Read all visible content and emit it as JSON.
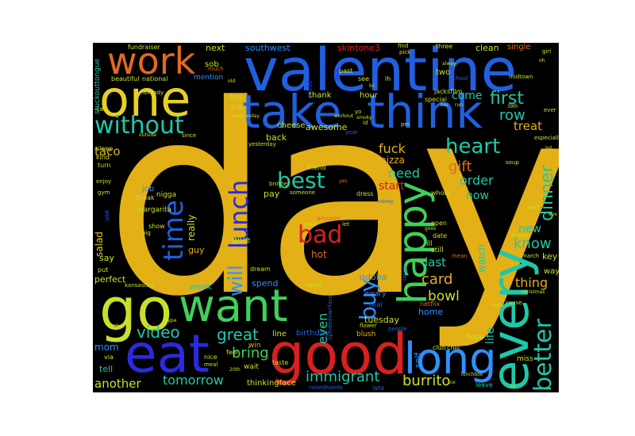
{
  "background": "#000000",
  "palette": {
    "gold": "#e3b016",
    "blue": "#2060e0",
    "teal": "#1fc8a8",
    "red": "#d82020",
    "green": "#3fd05a",
    "lime": "#c9e02a",
    "orange": "#e06a20",
    "darkblue": "#2a2ae0",
    "lightblue": "#3090ff",
    "yellow": "#e8d020"
  },
  "words": {
    "day": "day",
    "valentine": "valentine",
    "take": "take",
    "think": "think",
    "one": "one",
    "work": "work",
    "go": "go",
    "want": "want",
    "eat": "eat",
    "good": "good",
    "long": "long",
    "every": "every",
    "happy": "happy",
    "lunch": "lunch",
    "time": "time",
    "best": "best",
    "bad": "bad",
    "without": "without",
    "heart": "heart",
    "better": "better",
    "first": "first",
    "row": "row",
    "gift": "gift",
    "order": "order",
    "card": "card",
    "buy": "buy",
    "will": "will",
    "video": "video",
    "great": "great",
    "bring": "bring",
    "immigrant": "immigrant",
    "burrito": "burrito",
    "tomorrow": "tomorrow",
    "another": "another",
    "dinner": "dinner",
    "know": "know",
    "thing": "thing",
    "bowl": "bowl",
    "taco": "taco",
    "need": "need",
    "fuck": "fuck",
    "treat": "treat",
    "come": "come",
    "last": "last",
    "now": "now",
    "new": "new",
    "southwest": "southwest",
    "skintone3": "skintone3",
    "clean": "clean",
    "single": "single",
    "next": "next",
    "awesome": "awesome",
    "cheese": "cheese",
    "pizza": "pizza",
    "start": "start",
    "mom": "mom",
    "tell": "tell",
    "perfect": "perfect",
    "week": "week",
    "say": "say",
    "salad": "salad",
    "give": "give",
    "pay": "pay",
    "hot": "hot",
    "guy": "guy",
    "really": "really",
    "job": "job",
    "margarita": "margarita",
    "tuesday": "tuesday",
    "home": "home",
    "even": "even",
    "qdoba": "qdoba",
    "weary": "weary",
    "real": "real",
    "spend": "spend",
    "line": "line",
    "birthday": "birthday",
    "win": "win",
    "wait": "wait",
    "still": "still",
    "ill": "ill",
    "watch": "watch",
    "life": "life",
    "key": "key",
    "way": "way",
    "hope": "hope",
    "miss": "miss",
    "leave": "leave",
    "sob": "sob",
    "mention": "mention",
    "two": "two",
    "thank": "thank",
    "hour": "hour",
    "back": "back",
    "thinkingface": "thinkingface",
    "raisedhands": "raisedhands",
    "late": "late",
    "blush": "blush",
    "club": "club",
    "chili": "chili",
    "self": "self",
    "special": "special",
    "hey": "hey",
    "cry": "cry",
    "school": "school",
    "fundraiser": "fundraiser",
    "stuckouttongue": "stuckouttongue",
    "beautiful": "beautiful",
    "national": "national",
    "much": "much",
    "call": "call",
    "sleep": "sleep",
    "kind": "kind",
    "turn": "turn",
    "enjoy": "enjoy",
    "break": "break",
    "put": "put",
    "nigga": "nigga",
    "friend": "friend",
    "brother": "brother",
    "someone": "someone",
    "dress": "dress",
    "whole": "whole",
    "open": "open",
    "date": "date",
    "mean": "mean",
    "netflix": "netflix",
    "feel": "feel",
    "nice": "nice",
    "meal": "meal",
    "via": "via",
    "taste": "taste",
    "dream": "dream",
    "never": "never",
    "upsidedownface": "upsidedownface",
    "jacksfilm": "jacksfilm",
    "midtown": "midtown",
    "girl": "girl",
    "three": "three",
    "find": "find",
    "pick": "pick",
    "lh": "lh",
    "see": "see",
    "past": "past",
    "look": "look",
    "close": "close",
    "already": "already",
    "outside": "outside",
    "since": "since",
    "yesterday": "yesterday",
    "wednesday": "wednesday",
    "year": "year",
    "especially": "especially",
    "ever": "ever",
    "lol": "lol",
    "soup": "soup",
    "walk": "walk",
    "trump": "trump",
    "march": "march",
    "cause": "cause",
    "christmas": "christmas",
    "die": "die",
    "twice": "twice",
    "flower": "flower",
    "people": "people",
    "kansascity": "kansascity",
    "gym": "gym",
    "use": "use",
    "big": "big",
    "show": "show",
    "anyone": "anyone",
    "let": "let",
    "snow": "snow",
    "money": "money",
    "smoky": "smoky",
    "yo": "yo",
    "id": "id",
    "pm": "pm",
    "bar": "bar",
    "run": "run",
    "goes": "goes",
    "39th": "39th",
    "alway": "alway",
    "workout": "workout",
    "old": "old",
    "bc": "bc",
    "st": "st",
    "type": "type",
    "ice": "ice",
    "lunchbox": "lunchbox",
    "yes": "yes",
    "20th": "20th",
    "eye": "eye",
    "ur": "ur",
    "oh": "oh"
  }
}
